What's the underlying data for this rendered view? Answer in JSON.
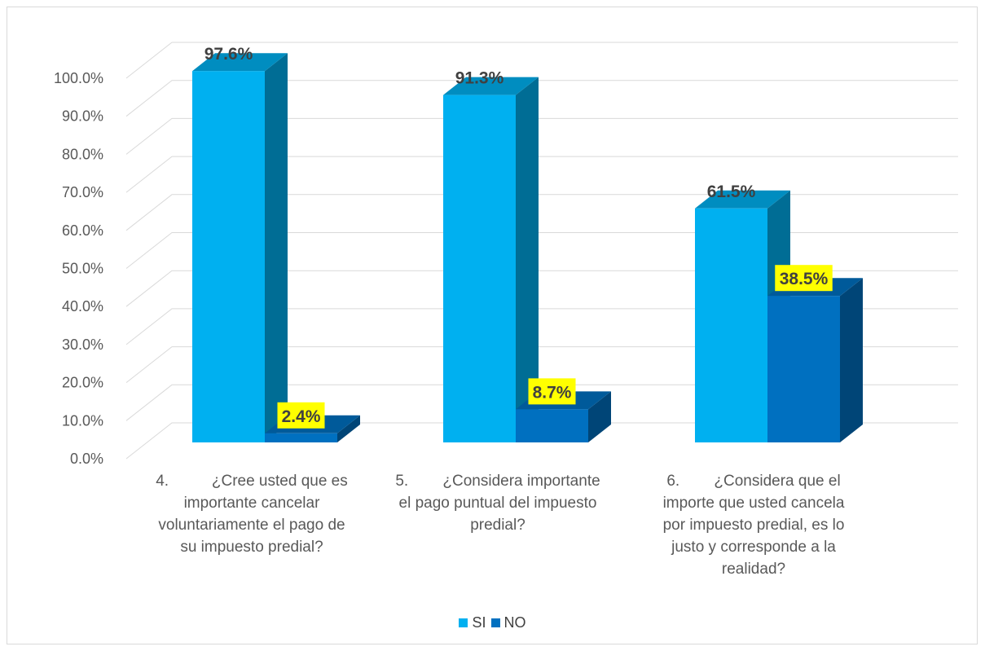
{
  "chart_data": {
    "type": "bar",
    "categories": [
      "4.           ¿Cree usted que es importante cancelar voluntariamente el pago de su impuesto predial?",
      "5.           ¿Considera importante el pago puntual del impuesto predial?",
      "6.           ¿Considera que el importe que usted cancela por impuesto predial, es lo justo y corresponde a la realidad?"
    ],
    "category_lines": [
      [
        "4.          ¿Cree usted que es",
        "importante cancelar",
        "voluntariamente el pago de",
        "su impuesto predial?"
      ],
      [
        "5.        ¿Considera importante",
        "el pago puntual del impuesto",
        "predial?"
      ],
      [
        "6.        ¿Considera que el",
        "importe que usted cancela",
        "por impuesto predial, es lo",
        "justo y corresponde a la",
        "realidad?"
      ]
    ],
    "series": [
      {
        "name": "SI",
        "values": [
          97.6,
          91.3,
          61.5
        ],
        "labels": [
          "97.6%",
          "91.3%",
          "61.5%"
        ],
        "color": "#00b0f0"
      },
      {
        "name": "NO",
        "values": [
          2.4,
          8.7,
          38.5
        ],
        "labels": [
          "2.4%",
          "8.7%",
          "38.5%"
        ],
        "color": "#0070c0"
      }
    ],
    "y_ticks": [
      "0.0%",
      "10.0%",
      "20.0%",
      "30.0%",
      "40.0%",
      "50.0%",
      "60.0%",
      "70.0%",
      "80.0%",
      "90.0%",
      "100.0%"
    ],
    "ylim": [
      0,
      100
    ],
    "grid": true,
    "legend_position": "bottom",
    "no_label_highlight": "#ffff00"
  }
}
